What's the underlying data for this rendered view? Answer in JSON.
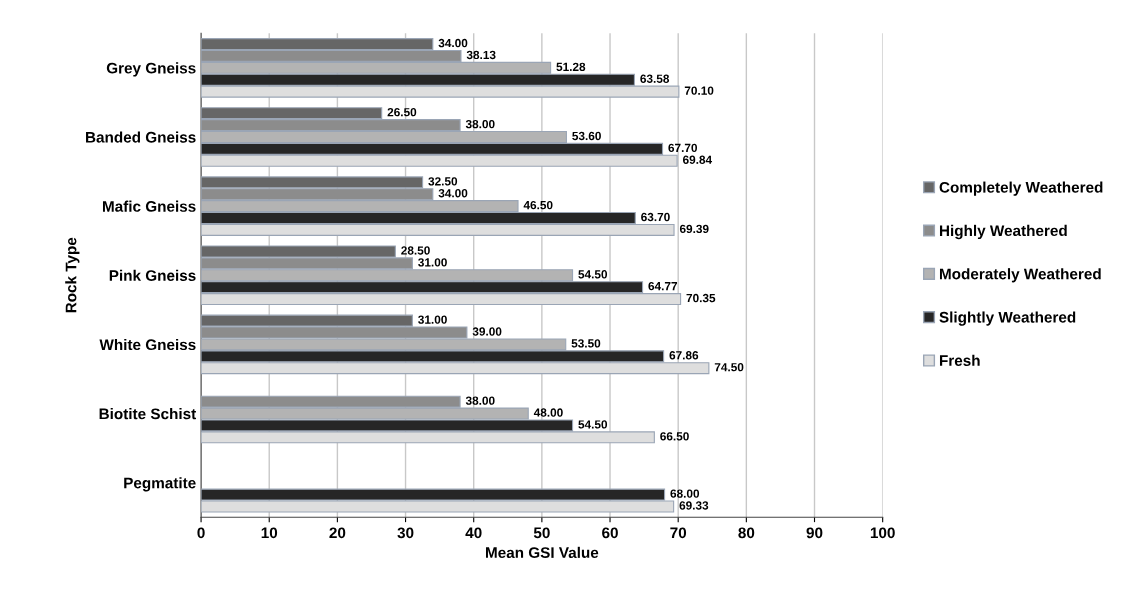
{
  "chart_data": {
    "type": "bar",
    "orientation": "horizontal",
    "xlabel": "Mean GSI Value",
    "ylabel": "Rock Type",
    "categories": [
      "Grey Gneiss",
      "Banded Gneiss",
      "Mafic Gneiss",
      "Pink Gneiss",
      "White Gneiss",
      "Biotite Schist",
      "Pegmatite"
    ],
    "series": [
      {
        "name": "Completely Weathered",
        "color": "#666666",
        "values": [
          34.0,
          26.5,
          32.5,
          28.5,
          31.0,
          null,
          null
        ],
        "value_labels": [
          "34.00",
          "26.50",
          "32.50",
          "28.50",
          "31.00",
          null,
          null
        ]
      },
      {
        "name": "Highly Weathered",
        "color": "#8c8c8c",
        "values": [
          38.13,
          38.0,
          34.0,
          31.0,
          39.0,
          38.0,
          null
        ],
        "value_labels": [
          "38.13",
          "38.00",
          "34.00",
          "31.00",
          "39.00",
          "38.00",
          null
        ]
      },
      {
        "name": "Moderately Weathered",
        "color": "#b3b3b3",
        "values": [
          51.28,
          53.6,
          46.5,
          54.5,
          53.5,
          48.0,
          null
        ],
        "value_labels": [
          "51.28",
          "53.60",
          "46.50",
          "54.50",
          "53.50",
          "48.00",
          null
        ]
      },
      {
        "name": "Slightly Weathered",
        "color": "#262626",
        "values": [
          63.58,
          67.7,
          63.7,
          64.77,
          67.86,
          54.5,
          68.0
        ],
        "value_labels": [
          "63.58",
          "67.70",
          "63.70",
          "64.77",
          "67.86",
          "54.50",
          "68.00"
        ]
      },
      {
        "name": "Fresh",
        "color": "#dedede",
        "values": [
          70.1,
          69.84,
          69.39,
          70.35,
          74.5,
          66.5,
          69.33
        ],
        "value_labels": [
          "70.10",
          "69.84",
          "69.39",
          "70.35",
          "74.50",
          "66.50",
          "69.33"
        ]
      }
    ],
    "xlim": [
      0,
      100
    ],
    "xticks": [
      0,
      10,
      20,
      30,
      40,
      50,
      60,
      70,
      80,
      90,
      100
    ],
    "grid": "x",
    "legend": "right"
  }
}
